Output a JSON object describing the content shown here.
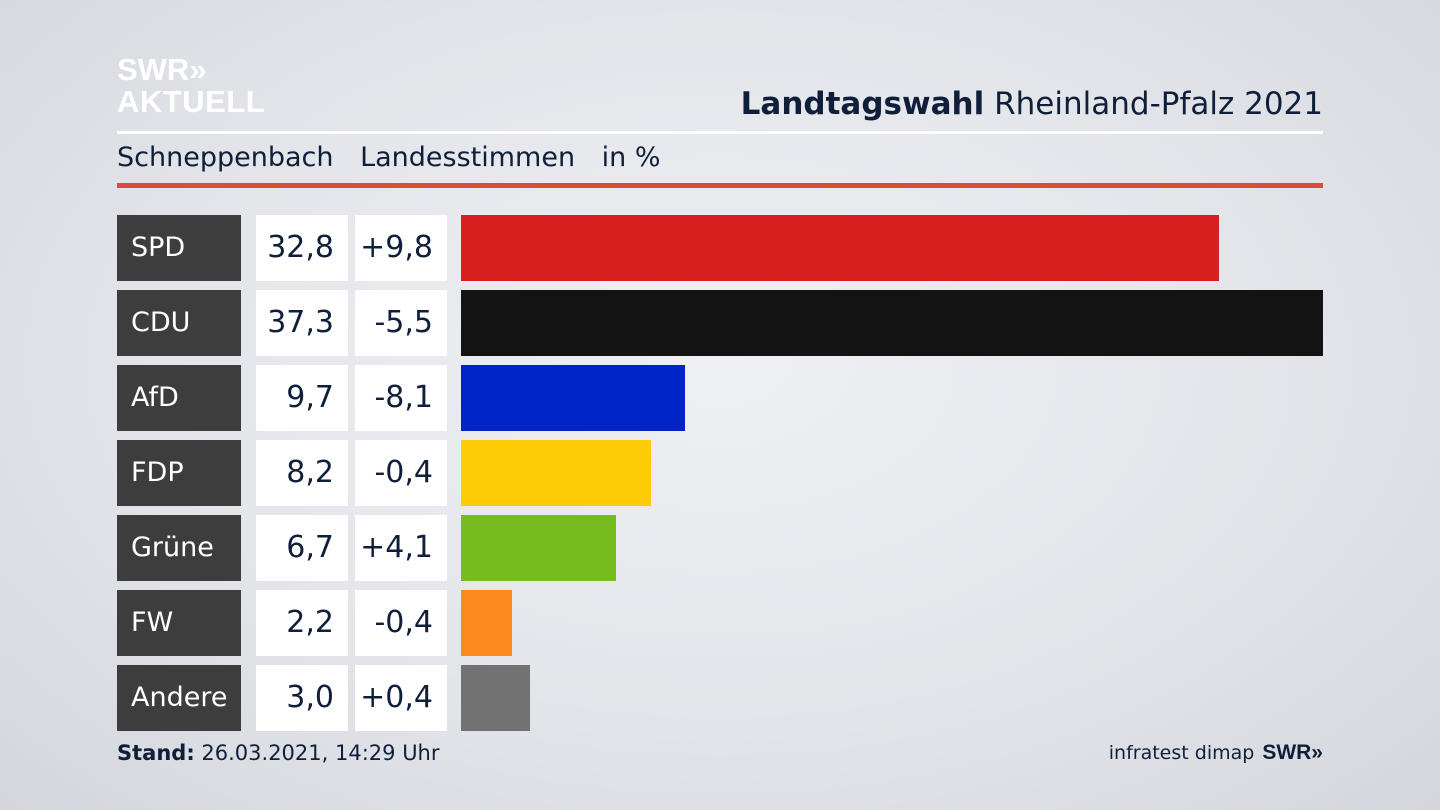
{
  "brand": {
    "line1": "SWR»",
    "line2": "AKTUELL"
  },
  "header": {
    "title_bold": "Landtagswahl",
    "title_rest": "Rheinland-Pfalz 2021"
  },
  "subheader": {
    "place": "Schneppenbach",
    "vote_type": "Landesstimmen",
    "unit": "in %"
  },
  "colors": {
    "accent_red_rule": "#d4503d",
    "label_bg": "#3d3d3d"
  },
  "footer": {
    "stand_label": "Stand:",
    "stand_value": "26.03.2021, 14:29 Uhr",
    "source": "infratest dimap",
    "source_brand": "SWR»"
  },
  "chart_data": {
    "type": "bar",
    "title": "Landtagswahl Rheinland-Pfalz 2021 – Schneppenbach Landesstimmen in %",
    "categories": [
      "SPD",
      "CDU",
      "AfD",
      "FDP",
      "Grüne",
      "FW",
      "Andere"
    ],
    "values": [
      32.8,
      37.3,
      9.7,
      8.2,
      6.7,
      2.2,
      3.0
    ],
    "value_labels": [
      "32,8",
      "37,3",
      "9,7",
      "8,2",
      "6,7",
      "2,2",
      "3,0"
    ],
    "change_labels": [
      "+9,8",
      "-5,5",
      "-8,1",
      "-0,4",
      "+4,1",
      "-0,4",
      "+0,4"
    ],
    "changes": [
      9.8,
      -5.5,
      -8.1,
      -0.4,
      4.1,
      -0.4,
      0.4
    ],
    "colors": [
      "#d71f20",
      "#131313",
      "#0024c8",
      "#fdcc06",
      "#75bc1d",
      "#fd8a1c",
      "#727272"
    ],
    "orientation": "horizontal",
    "xlim": [
      0,
      37.3
    ]
  }
}
